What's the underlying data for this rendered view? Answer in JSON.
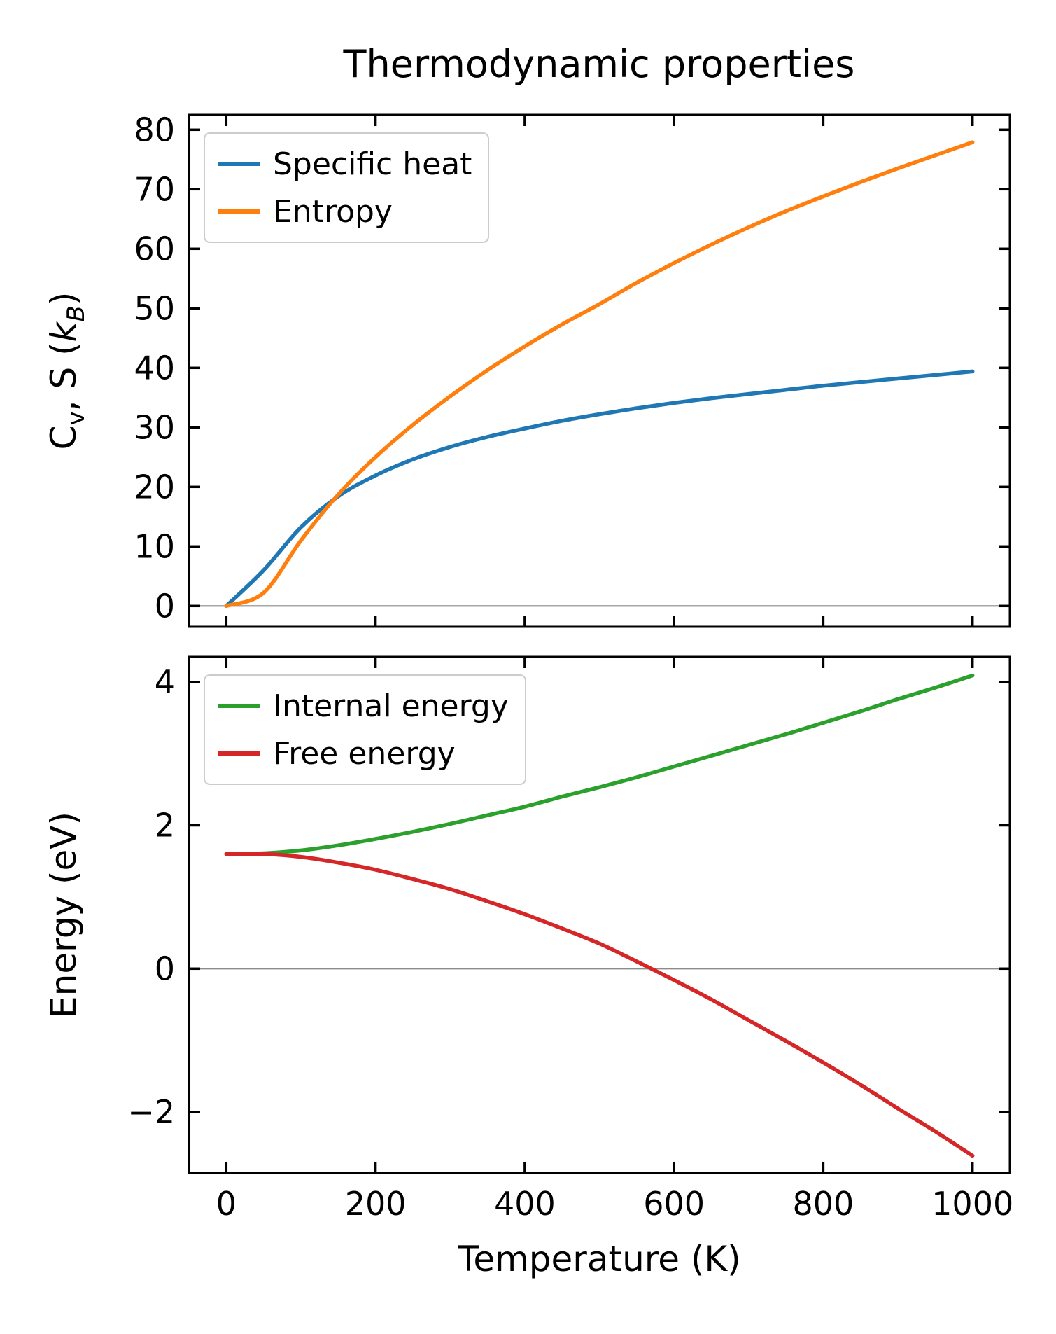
{
  "title": "Thermodynamic properties",
  "figure": {
    "background": "#ffffff",
    "spine_color": "#000000",
    "zero_line_color": "#8c8c8c",
    "legend_border_color": "#cccccc"
  },
  "chart_data": [
    {
      "type": "line",
      "id": "thermal-properties",
      "title": "Thermodynamic properties",
      "xlabel": "",
      "ylabel": "Cv, S (kB)",
      "ylabel_parts": [
        {
          "t": "C",
          "sub": false,
          "italic": false
        },
        {
          "t": "v",
          "sub": true,
          "italic": false
        },
        {
          "t": ", S (",
          "sub": false,
          "italic": false
        },
        {
          "t": "k",
          "sub": false,
          "italic": true
        },
        {
          "t": "B",
          "sub": true,
          "italic": true
        },
        {
          "t": ")",
          "sub": false,
          "italic": false
        }
      ],
      "xlim": [
        -50,
        1050
      ],
      "ylim": [
        -3.5,
        82.5
      ],
      "xticks": [
        0,
        200,
        400,
        600,
        800,
        1000
      ],
      "yticks": [
        0,
        10,
        20,
        30,
        40,
        50,
        60,
        70,
        80
      ],
      "show_x_tick_labels": false,
      "zero_line": true,
      "legend_position": "upper left",
      "x": [
        0,
        50,
        100,
        150,
        200,
        250,
        300,
        350,
        400,
        450,
        500,
        550,
        600,
        650,
        700,
        750,
        800,
        850,
        900,
        950,
        1000
      ],
      "series": [
        {
          "name": "Specific heat",
          "color": "#1f77b4",
          "values": [
            0,
            6.0,
            13.2,
            18.4,
            21.9,
            24.6,
            26.7,
            28.4,
            29.8,
            31.1,
            32.2,
            33.2,
            34.1,
            34.9,
            35.6,
            36.3,
            37.0,
            37.6,
            38.2,
            38.8,
            39.4
          ]
        },
        {
          "name": "Entropy",
          "color": "#ff7f0e",
          "values": [
            0,
            2.2,
            11.0,
            18.7,
            25.0,
            30.4,
            35.2,
            39.6,
            43.6,
            47.3,
            50.7,
            54.3,
            57.6,
            60.7,
            63.6,
            66.3,
            68.8,
            71.2,
            73.5,
            75.7,
            77.9
          ]
        }
      ]
    },
    {
      "type": "line",
      "id": "energies",
      "xlabel": "Temperature (K)",
      "ylabel": "Energy (eV)",
      "ylabel_parts": [
        {
          "t": "Energy (eV)",
          "sub": false,
          "italic": false
        }
      ],
      "xlim": [
        -50,
        1050
      ],
      "ylim": [
        -2.85,
        4.35
      ],
      "xticks": [
        0,
        200,
        400,
        600,
        800,
        1000
      ],
      "yticks": [
        -2,
        0,
        2,
        4
      ],
      "show_x_tick_labels": true,
      "zero_line": true,
      "legend_position": "upper left",
      "x": [
        0,
        50,
        100,
        150,
        200,
        250,
        300,
        350,
        400,
        450,
        500,
        550,
        600,
        650,
        700,
        750,
        800,
        850,
        900,
        950,
        1000
      ],
      "series": [
        {
          "name": "Internal energy",
          "color": "#2ca02c",
          "values": [
            1.6,
            1.61,
            1.65,
            1.72,
            1.81,
            1.91,
            2.02,
            2.14,
            2.26,
            2.4,
            2.53,
            2.67,
            2.82,
            2.97,
            3.12,
            3.27,
            3.43,
            3.59,
            3.76,
            3.92,
            4.09
          ]
        },
        {
          "name": "Free energy",
          "color": "#d62728",
          "values": [
            1.6,
            1.6,
            1.56,
            1.48,
            1.38,
            1.25,
            1.11,
            0.94,
            0.76,
            0.56,
            0.35,
            0.1,
            -0.16,
            -0.43,
            -0.72,
            -1.01,
            -1.31,
            -1.62,
            -1.95,
            -2.27,
            -2.61
          ]
        }
      ]
    }
  ]
}
